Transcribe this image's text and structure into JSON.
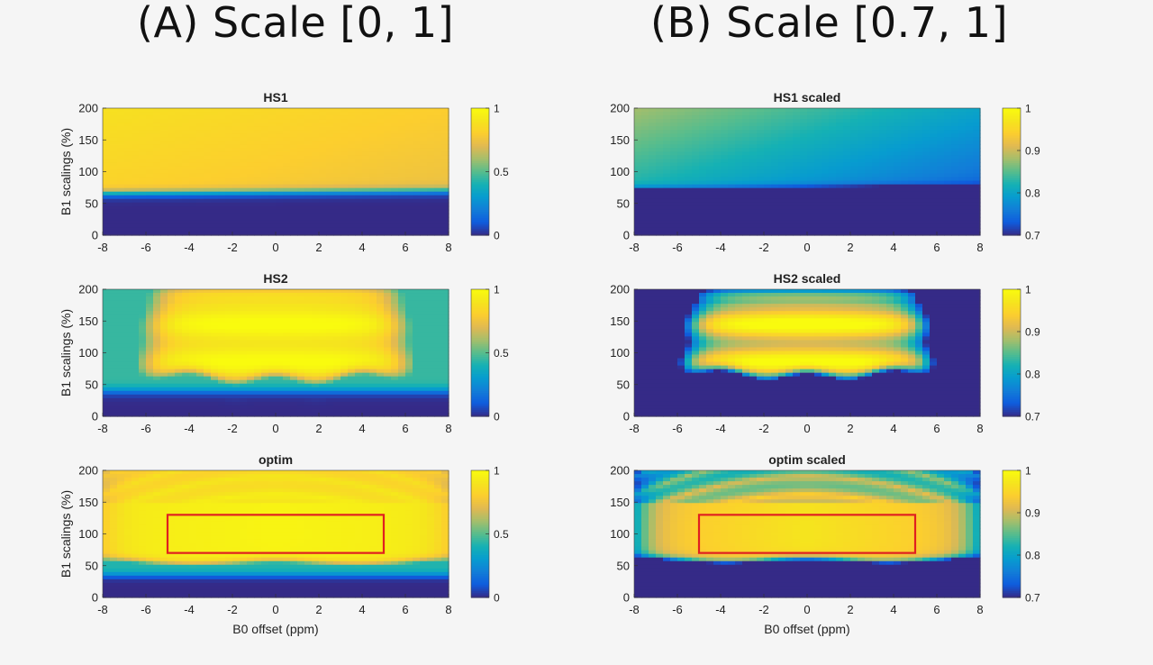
{
  "figure": {
    "column_titles": [
      "(A) Scale [0, 1]",
      "(B) Scale [0.7, 1]"
    ]
  },
  "colors": {
    "roi_box": "#e02020",
    "parula_low": "#352a87",
    "parula_high": "#f9fb0e"
  },
  "chart_data": [
    {
      "type": "heatmap",
      "title": "HS1",
      "column": "A",
      "xlabel": "",
      "ylabel": "B1 scalings (%)",
      "xlim": [
        -8,
        8
      ],
      "ylim": [
        0,
        200
      ],
      "clim": [
        0,
        1
      ],
      "xticks": [
        -8,
        -6,
        -4,
        -2,
        0,
        2,
        4,
        6,
        8
      ],
      "yticks": [
        0,
        50,
        100,
        150,
        200
      ],
      "colorbar_ticks": [
        0,
        0.5,
        1
      ],
      "pattern": "hs1"
    },
    {
      "type": "heatmap",
      "title": "HS1 scaled",
      "column": "B",
      "xlabel": "",
      "ylabel": "",
      "xlim": [
        -8,
        8
      ],
      "ylim": [
        0,
        200
      ],
      "clim": [
        0.7,
        1
      ],
      "xticks": [
        -8,
        -6,
        -4,
        -2,
        0,
        2,
        4,
        6,
        8
      ],
      "yticks": [
        0,
        50,
        100,
        150,
        200
      ],
      "colorbar_ticks": [
        0.7,
        0.8,
        0.9,
        1
      ],
      "pattern": "hs1"
    },
    {
      "type": "heatmap",
      "title": "HS2",
      "column": "A",
      "xlabel": "",
      "ylabel": "B1 scalings (%)",
      "xlim": [
        -8,
        8
      ],
      "ylim": [
        0,
        200
      ],
      "clim": [
        0,
        1
      ],
      "xticks": [
        -8,
        -6,
        -4,
        -2,
        0,
        2,
        4,
        6,
        8
      ],
      "yticks": [
        0,
        50,
        100,
        150,
        200
      ],
      "colorbar_ticks": [
        0,
        0.5,
        1
      ],
      "pattern": "hs2"
    },
    {
      "type": "heatmap",
      "title": "HS2 scaled",
      "column": "B",
      "xlabel": "",
      "ylabel": "",
      "xlim": [
        -8,
        8
      ],
      "ylim": [
        0,
        200
      ],
      "clim": [
        0.7,
        1
      ],
      "xticks": [
        -8,
        -6,
        -4,
        -2,
        0,
        2,
        4,
        6,
        8
      ],
      "yticks": [
        0,
        50,
        100,
        150,
        200
      ],
      "colorbar_ticks": [
        0.7,
        0.8,
        0.9,
        1
      ],
      "pattern": "hs2"
    },
    {
      "type": "heatmap",
      "title": "optim",
      "column": "A",
      "xlabel": "B0 offset (ppm)",
      "ylabel": "B1 scalings (%)",
      "xlim": [
        -8,
        8
      ],
      "ylim": [
        0,
        200
      ],
      "clim": [
        0,
        1
      ],
      "xticks": [
        -8,
        -6,
        -4,
        -2,
        0,
        2,
        4,
        6,
        8
      ],
      "yticks": [
        0,
        50,
        100,
        150,
        200
      ],
      "colorbar_ticks": [
        0,
        0.5,
        1
      ],
      "pattern": "optim",
      "roi": {
        "x": [
          -5,
          5
        ],
        "y": [
          70,
          130
        ]
      }
    },
    {
      "type": "heatmap",
      "title": "optim scaled",
      "column": "B",
      "xlabel": "B0 offset (ppm)",
      "ylabel": "",
      "xlim": [
        -8,
        8
      ],
      "ylim": [
        0,
        200
      ],
      "clim": [
        0.7,
        1
      ],
      "xticks": [
        -8,
        -6,
        -4,
        -2,
        0,
        2,
        4,
        6,
        8
      ],
      "yticks": [
        0,
        50,
        100,
        150,
        200
      ],
      "colorbar_ticks": [
        0.7,
        0.8,
        0.9,
        1
      ],
      "pattern": "optim",
      "roi": {
        "x": [
          -5,
          5
        ],
        "y": [
          70,
          130
        ]
      }
    }
  ]
}
